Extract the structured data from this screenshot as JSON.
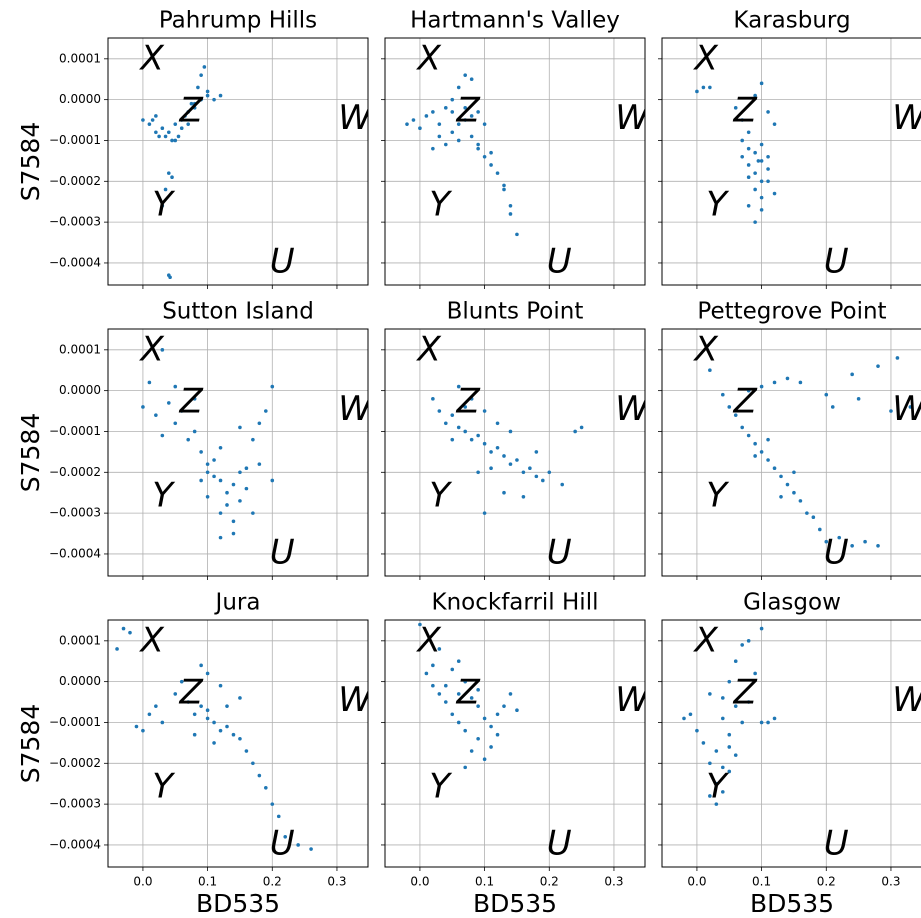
{
  "chart_data": [
    {
      "type": "scatter",
      "title": "Pahrump Hills",
      "ylabel": "S7584",
      "color": "#1f77b4",
      "grid": true,
      "xlim": [
        -0.054,
        0.348
      ],
      "ylim": [
        -0.000454,
        0.000151
      ],
      "xticks": [
        {
          "value": 0,
          "label": "0.0"
        },
        0.1,
        0.2,
        0.3
      ],
      "yticks": [
        {
          "value": 0.0001,
          "label": "0.0001"
        },
        {
          "value": 0,
          "label": "0.0000"
        },
        {
          "value": -0.0001,
          "label": "−0.0001"
        },
        {
          "value": -0.0002,
          "label": "−0.0002"
        },
        {
          "value": -0.0003,
          "label": "−0.0003"
        },
        {
          "value": -0.0004,
          "label": "−0.0004"
        }
      ],
      "annotations": [
        "X",
        "Z",
        "W",
        "Y",
        "U"
      ],
      "x": [
        0.0,
        0.01,
        0.02,
        0.03,
        0.04,
        0.05,
        0.06,
        0.07,
        0.08,
        0.09,
        0.1,
        0.11,
        0.12,
        0.09,
        0.095,
        0.085,
        0.075,
        0.065,
        0.055,
        0.045,
        0.035,
        0.05,
        0.06,
        0.04,
        0.045,
        0.035,
        0.03,
        0.04,
        0.042,
        0.02,
        0.07,
        0.08,
        0.1,
        0.015,
        0.025
      ],
      "values": [
        -5e-05,
        -6e-05,
        -4e-05,
        -7e-05,
        -8e-05,
        -6e-05,
        -5e-05,
        -3e-05,
        -2e-05,
        0.0,
        1e-05,
        0.0,
        1e-05,
        6e-05,
        8e-05,
        3e-05,
        -1e-05,
        -4e-05,
        -9e-05,
        -0.0001,
        -9e-05,
        -0.0001,
        -7e-05,
        -0.00018,
        -0.00019,
        -0.00022,
        -0.00026,
        -0.00043,
        -0.000435,
        -8e-05,
        -6e-05,
        -1e-05,
        2e-05,
        -5e-05,
        -9e-05
      ]
    },
    {
      "type": "scatter",
      "title": "Hartmann's Valley",
      "color": "#1f77b4",
      "grid": true,
      "xlim": [
        -0.054,
        0.348
      ],
      "ylim": [
        -0.000454,
        0.000151
      ],
      "xticks": [
        {
          "value": 0,
          "label": "0.0"
        },
        0.1,
        0.2,
        0.3
      ],
      "yticks": [
        {
          "value": 0.0001,
          "label": "0.0001"
        },
        {
          "value": 0,
          "label": "0.0000"
        },
        {
          "value": -0.0001,
          "label": "−0.0001"
        },
        {
          "value": -0.0002,
          "label": "−0.0002"
        },
        {
          "value": -0.0003,
          "label": "−0.0003"
        },
        {
          "value": -0.0004,
          "label": "−0.0004"
        }
      ],
      "annotations": [
        "X",
        "Z",
        "W",
        "Y",
        "U"
      ],
      "x": [
        -0.02,
        -0.01,
        0.0,
        0.01,
        0.02,
        0.03,
        0.04,
        0.05,
        0.06,
        0.07,
        0.08,
        0.09,
        0.1,
        0.05,
        0.06,
        0.07,
        0.08,
        0.04,
        0.03,
        0.02,
        0.09,
        0.1,
        0.11,
        0.12,
        0.13,
        0.14,
        0.15,
        0.14,
        0.13,
        0.08,
        0.06,
        0.05,
        0.07,
        0.09,
        0.11
      ],
      "values": [
        -6e-05,
        -5e-05,
        -7e-05,
        -4e-05,
        -3e-05,
        -6e-05,
        -2e-05,
        0.0,
        3e-05,
        6e-05,
        5e-05,
        -3e-05,
        -6e-05,
        -8e-05,
        -0.0001,
        -5e-05,
        -9e-05,
        -0.00011,
        -9e-05,
        -0.00012,
        -0.00012,
        -0.00014,
        -0.00016,
        -0.00018,
        -0.00022,
        -0.00028,
        -0.00033,
        -0.00026,
        -0.00021,
        -4e-05,
        -6e-05,
        -3e-05,
        -2e-05,
        -0.00011,
        -0.00013
      ]
    },
    {
      "type": "scatter",
      "title": "Karasburg",
      "color": "#1f77b4",
      "grid": true,
      "xlim": [
        -0.054,
        0.348
      ],
      "ylim": [
        -0.000454,
        0.000151
      ],
      "xticks": [
        {
          "value": 0,
          "label": "0.0"
        },
        0.1,
        0.2,
        0.3
      ],
      "yticks": [
        {
          "value": 0.0001,
          "label": "0.0001"
        },
        {
          "value": 0,
          "label": "0.0000"
        },
        {
          "value": -0.0001,
          "label": "−0.0001"
        },
        {
          "value": -0.0002,
          "label": "−0.0002"
        },
        {
          "value": -0.0003,
          "label": "−0.0003"
        },
        {
          "value": -0.0004,
          "label": "−0.0004"
        }
      ],
      "annotations": [
        "X",
        "Z",
        "W",
        "Y",
        "U"
      ],
      "x": [
        0.0,
        0.01,
        0.02,
        0.06,
        0.07,
        0.08,
        0.09,
        0.1,
        0.11,
        0.12,
        0.07,
        0.08,
        0.09,
        0.1,
        0.11,
        0.09,
        0.1,
        0.08,
        0.09,
        0.1,
        0.11,
        0.12,
        0.08,
        0.07,
        0.1,
        0.09,
        0.11,
        0.1,
        0.08,
        0.095
      ],
      "values": [
        2e-05,
        3e-05,
        3e-05,
        -2e-05,
        -5e-05,
        -8e-05,
        1e-05,
        4e-05,
        -3e-05,
        -6e-05,
        -0.0001,
        -0.00012,
        -0.00013,
        -0.00015,
        -0.00017,
        -0.00018,
        -0.0002,
        -0.00016,
        -0.00022,
        -0.00024,
        -0.0002,
        -0.00023,
        -0.00026,
        -0.00014,
        -0.00027,
        -0.0003,
        -0.00014,
        -0.00011,
        -0.00019,
        -0.00015
      ]
    },
    {
      "type": "scatter",
      "title": "Sutton Island",
      "ylabel": "S7584",
      "color": "#1f77b4",
      "grid": true,
      "xlim": [
        -0.054,
        0.348
      ],
      "ylim": [
        -0.000454,
        0.000151
      ],
      "xticks": [
        {
          "value": 0,
          "label": "0.0"
        },
        0.1,
        0.2,
        0.3
      ],
      "yticks": [
        {
          "value": 0.0001,
          "label": "0.0001"
        },
        {
          "value": 0,
          "label": "0.0000"
        },
        {
          "value": -0.0001,
          "label": "−0.0001"
        },
        {
          "value": -0.0002,
          "label": "−0.0002"
        },
        {
          "value": -0.0003,
          "label": "−0.0003"
        },
        {
          "value": -0.0004,
          "label": "−0.0004"
        }
      ],
      "annotations": [
        "X",
        "Z",
        "W",
        "Y",
        "U"
      ],
      "x": [
        0.0,
        0.01,
        0.02,
        0.03,
        0.04,
        0.05,
        0.06,
        0.07,
        0.08,
        0.09,
        0.1,
        0.11,
        0.12,
        0.13,
        0.14,
        0.15,
        0.16,
        0.17,
        0.18,
        0.19,
        0.2,
        0.1,
        0.12,
        0.14,
        0.13,
        0.15,
        0.11,
        0.09,
        0.16,
        0.14,
        0.12,
        0.08,
        0.05,
        0.03,
        0.18,
        0.2,
        0.15,
        0.1,
        0.17,
        0.12
      ],
      "values": [
        -4e-05,
        2e-05,
        -6e-05,
        0.0001,
        -3e-05,
        -8e-05,
        -5e-05,
        -0.00012,
        -0.0001,
        -0.00015,
        -0.00018,
        -0.00021,
        -0.00022,
        -0.00025,
        -0.00023,
        -0.0002,
        -0.00019,
        -0.00012,
        -8e-05,
        -5e-05,
        1e-05,
        -0.00026,
        -0.0003,
        -0.00032,
        -0.00028,
        -0.00027,
        -0.00017,
        -0.00022,
        -0.00024,
        -0.00035,
        -0.00036,
        -2e-05,
        1e-05,
        -0.00011,
        -0.00018,
        -0.00022,
        -9e-05,
        -0.0002,
        -0.0003,
        -0.00014
      ]
    },
    {
      "type": "scatter",
      "title": "Blunts Point",
      "color": "#1f77b4",
      "grid": true,
      "xlim": [
        -0.054,
        0.348
      ],
      "ylim": [
        -0.000454,
        0.000151
      ],
      "xticks": [
        {
          "value": 0,
          "label": "0.0"
        },
        0.1,
        0.2,
        0.3
      ],
      "yticks": [
        {
          "value": 0.0001,
          "label": "0.0001"
        },
        {
          "value": 0,
          "label": "0.0000"
        },
        {
          "value": -0.0001,
          "label": "−0.0001"
        },
        {
          "value": -0.0002,
          "label": "−0.0002"
        },
        {
          "value": -0.0003,
          "label": "−0.0003"
        },
        {
          "value": -0.0004,
          "label": "−0.0004"
        }
      ],
      "annotations": [
        "X",
        "Z",
        "W",
        "Y",
        "U"
      ],
      "x": [
        0.02,
        0.03,
        0.04,
        0.05,
        0.06,
        0.07,
        0.08,
        0.09,
        0.1,
        0.11,
        0.12,
        0.13,
        0.14,
        0.15,
        0.16,
        0.17,
        0.18,
        0.19,
        0.2,
        0.22,
        0.24,
        0.06,
        0.08,
        0.1,
        0.12,
        0.14,
        0.09,
        0.1,
        0.13,
        0.16,
        0.05,
        0.07,
        0.11,
        0.18,
        0.25
      ],
      "values": [
        -2e-05,
        -5e-05,
        -8e-05,
        -6e-05,
        -9e-05,
        -0.0001,
        -0.00012,
        -0.00011,
        -0.00013,
        -0.00015,
        -0.00014,
        -0.00016,
        -0.00018,
        -0.00017,
        -0.0002,
        -0.00019,
        -0.00021,
        -0.00022,
        -0.0002,
        -0.00023,
        -0.0001,
        1e-05,
        -2e-05,
        -5e-05,
        -8e-05,
        -0.0001,
        -0.0002,
        -0.0003,
        -0.00025,
        -0.00026,
        -0.00012,
        -4e-05,
        -0.00019,
        -0.00015,
        -9e-05
      ]
    },
    {
      "type": "scatter",
      "title": "Pettegrove Point",
      "color": "#1f77b4",
      "grid": true,
      "xlim": [
        -0.054,
        0.348
      ],
      "ylim": [
        -0.000454,
        0.000151
      ],
      "xticks": [
        {
          "value": 0,
          "label": "0.0"
        },
        0.1,
        0.2,
        0.3
      ],
      "yticks": [
        {
          "value": 0.0001,
          "label": "0.0001"
        },
        {
          "value": 0,
          "label": "0.0000"
        },
        {
          "value": -0.0001,
          "label": "−0.0001"
        },
        {
          "value": -0.0002,
          "label": "−0.0002"
        },
        {
          "value": -0.0003,
          "label": "−0.0003"
        },
        {
          "value": -0.0004,
          "label": "−0.0004"
        }
      ],
      "annotations": [
        "X",
        "Z",
        "W",
        "Y",
        "U"
      ],
      "x": [
        0.02,
        0.04,
        0.05,
        0.06,
        0.07,
        0.08,
        0.09,
        0.1,
        0.11,
        0.12,
        0.13,
        0.14,
        0.15,
        0.16,
        0.17,
        0.18,
        0.19,
        0.2,
        0.22,
        0.24,
        0.26,
        0.28,
        0.08,
        0.1,
        0.12,
        0.14,
        0.16,
        0.2,
        0.24,
        0.28,
        0.31,
        0.33,
        0.35,
        0.09,
        0.11,
        0.13,
        0.15,
        0.21,
        0.25,
        0.3
      ],
      "values": [
        5e-05,
        -1e-05,
        -4e-05,
        -6e-05,
        -9e-05,
        -0.00011,
        -0.00013,
        -0.00015,
        -0.00017,
        -0.00019,
        -0.00021,
        -0.00023,
        -0.00025,
        -0.00027,
        -0.0003,
        -0.00031,
        -0.00034,
        -0.00037,
        -0.00036,
        -0.00038,
        -0.00037,
        -0.00038,
        0.0,
        1e-05,
        2e-05,
        3e-05,
        2e-05,
        -1e-05,
        4e-05,
        6e-05,
        8e-05,
        -4e-05,
        -6e-05,
        -0.00016,
        -0.00012,
        -0.00026,
        -0.0002,
        -4e-05,
        -2e-05,
        -5e-05
      ]
    },
    {
      "type": "scatter",
      "title": "Jura",
      "ylabel": "S7584",
      "xlabel": "BD535",
      "color": "#1f77b4",
      "grid": true,
      "xlim": [
        -0.054,
        0.348
      ],
      "ylim": [
        -0.000454,
        0.000151
      ],
      "xticks": [
        {
          "value": 0,
          "label": "0.0"
        },
        0.1,
        0.2,
        0.3
      ],
      "yticks": [
        {
          "value": 0.0001,
          "label": "0.0001"
        },
        {
          "value": 0,
          "label": "0.0000"
        },
        {
          "value": -0.0001,
          "label": "−0.0001"
        },
        {
          "value": -0.0002,
          "label": "−0.0002"
        },
        {
          "value": -0.0003,
          "label": "−0.0003"
        },
        {
          "value": -0.0004,
          "label": "−0.0004"
        }
      ],
      "annotations": [
        "X",
        "Z",
        "W",
        "Y",
        "U"
      ],
      "x": [
        -0.04,
        -0.03,
        -0.02,
        -0.01,
        0.0,
        0.01,
        0.02,
        0.03,
        0.05,
        0.07,
        0.08,
        0.09,
        0.1,
        0.11,
        0.12,
        0.13,
        0.14,
        0.15,
        0.16,
        0.17,
        0.18,
        0.19,
        0.2,
        0.21,
        0.22,
        0.24,
        0.26,
        0.09,
        0.1,
        0.12,
        0.11,
        0.08,
        0.06,
        0.13,
        0.15,
        0.1
      ],
      "values": [
        8e-05,
        0.00013,
        0.00012,
        -0.00011,
        -0.00012,
        -8e-05,
        -6e-05,
        -0.0001,
        -3e-05,
        -5e-05,
        -8e-05,
        -6e-05,
        -9e-05,
        -0.0001,
        -0.00012,
        -0.00011,
        -0.00013,
        -0.00014,
        -0.00017,
        -0.0002,
        -0.00023,
        -0.00026,
        -0.0003,
        -0.00033,
        -0.00038,
        -0.0004,
        -0.00041,
        4e-05,
        2e-05,
        -1e-05,
        -0.00015,
        -0.00013,
        0.0,
        -6e-05,
        -4e-05,
        -7e-05
      ]
    },
    {
      "type": "scatter",
      "title": "Knockfarril Hill",
      "xlabel": "BD535",
      "color": "#1f77b4",
      "grid": true,
      "xlim": [
        -0.054,
        0.348
      ],
      "ylim": [
        -0.000454,
        0.000151
      ],
      "xticks": [
        {
          "value": 0,
          "label": "0.0"
        },
        0.1,
        0.2,
        0.3
      ],
      "yticks": [
        {
          "value": 0.0001,
          "label": "0.0001"
        },
        {
          "value": 0,
          "label": "0.0000"
        },
        {
          "value": -0.0001,
          "label": "−0.0001"
        },
        {
          "value": -0.0002,
          "label": "−0.0002"
        },
        {
          "value": -0.0003,
          "label": "−0.0003"
        },
        {
          "value": -0.0004,
          "label": "−0.0004"
        }
      ],
      "annotations": [
        "X",
        "Z",
        "W",
        "Y",
        "U"
      ],
      "x": [
        0.0,
        0.01,
        0.02,
        0.03,
        0.04,
        0.05,
        0.06,
        0.07,
        0.08,
        0.09,
        0.1,
        0.11,
        0.12,
        0.13,
        0.14,
        0.15,
        0.03,
        0.05,
        0.07,
        0.09,
        0.11,
        0.04,
        0.06,
        0.08,
        0.1,
        0.02,
        0.07,
        0.09,
        0.12,
        0.06
      ],
      "values": [
        0.00014,
        2e-05,
        4e-05,
        8e-05,
        -1e-05,
        3e-05,
        -3e-05,
        0.0,
        -4e-05,
        -6e-05,
        -9e-05,
        -0.00011,
        -8e-05,
        -6e-05,
        -3e-05,
        -7e-05,
        -3e-05,
        -8e-05,
        -0.00012,
        -0.00014,
        -0.00016,
        -5e-05,
        -0.0001,
        -0.00017,
        -0.00019,
        -1e-05,
        -0.00021,
        -2e-05,
        -0.00013,
        5e-05
      ]
    },
    {
      "type": "scatter",
      "title": "Glasgow",
      "xlabel": "BD535",
      "color": "#1f77b4",
      "grid": true,
      "xlim": [
        -0.054,
        0.348
      ],
      "ylim": [
        -0.000454,
        0.000151
      ],
      "xticks": [
        {
          "value": 0,
          "label": "0.0"
        },
        0.1,
        0.2,
        0.3
      ],
      "yticks": [
        {
          "value": 0.0001,
          "label": "0.0001"
        },
        {
          "value": 0,
          "label": "0.0000"
        },
        {
          "value": -0.0001,
          "label": "−0.0001"
        },
        {
          "value": -0.0002,
          "label": "−0.0002"
        },
        {
          "value": -0.0003,
          "label": "−0.0003"
        },
        {
          "value": -0.0004,
          "label": "−0.0004"
        }
      ],
      "annotations": [
        "X",
        "Z",
        "W",
        "Y",
        "U"
      ],
      "x": [
        -0.02,
        -0.01,
        0.0,
        0.01,
        0.02,
        0.03,
        0.04,
        0.05,
        0.06,
        0.07,
        0.08,
        0.09,
        0.1,
        0.11,
        0.12,
        0.02,
        0.03,
        0.04,
        0.05,
        0.06,
        0.03,
        0.04,
        0.05,
        0.02,
        0.06,
        0.07,
        0.08,
        0.1,
        0.04,
        0.05
      ],
      "values": [
        -9e-05,
        -8e-05,
        -0.00012,
        -0.00015,
        -0.0002,
        -0.00025,
        -0.00027,
        -0.00022,
        -0.00018,
        -0.0001,
        -5e-05,
        2e-05,
        0.00013,
        -0.0001,
        -9e-05,
        -0.00028,
        -0.0003,
        -0.00021,
        -0.00013,
        -6e-05,
        -0.00017,
        -9e-05,
        0.0,
        -3e-05,
        5e-05,
        9e-05,
        0.0001,
        -0.0001,
        -4e-05,
        -0.00016
      ]
    }
  ]
}
